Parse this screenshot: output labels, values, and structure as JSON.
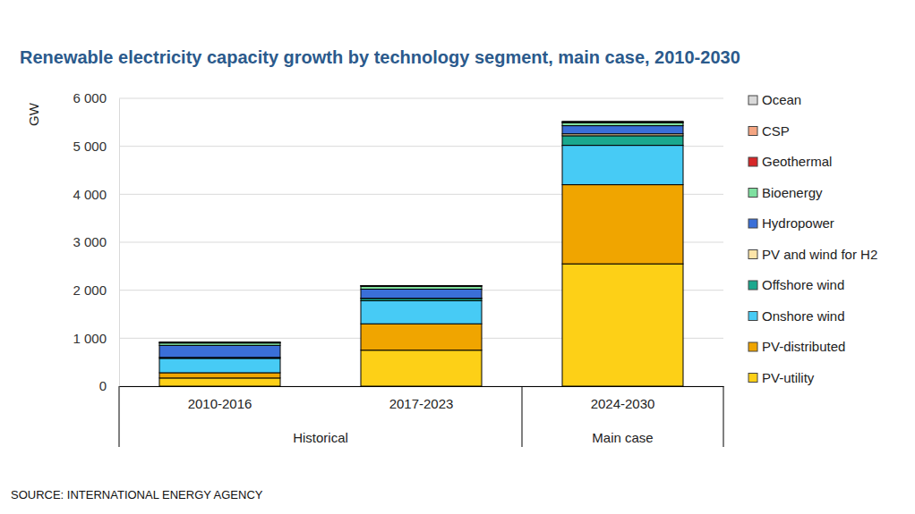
{
  "chart_data": {
    "type": "bar",
    "title": "Renewable electricity capacity growth by technology segment, main case, 2010-2030",
    "y_label": "GW",
    "source": "SOURCE: INTERNATIONAL ENERGY AGENCY",
    "stacked": true,
    "grid": true,
    "legend": "right",
    "categories": [
      "2010-2016",
      "2017-2023",
      "2024-2030"
    ],
    "category_groups": [
      {
        "name": "Historical",
        "categories": [
          "2010-2016",
          "2017-2023"
        ]
      },
      {
        "name": "Main case",
        "categories": [
          "2024-2030"
        ]
      }
    ],
    "series": [
      {
        "name": "PV-utility",
        "color": "#fdd017",
        "values": [
          170,
          750,
          2550
        ]
      },
      {
        "name": "PV-distributed",
        "color": "#f0a500",
        "values": [
          110,
          550,
          1650
        ]
      },
      {
        "name": "Onshore wind",
        "color": "#47cbf5",
        "values": [
          300,
          480,
          820
        ]
      },
      {
        "name": "Offshore wind",
        "color": "#1aa88e",
        "values": [
          20,
          50,
          200
        ]
      },
      {
        "name": "PV and wind for H2",
        "color": "#fce4a8",
        "values": [
          0,
          2,
          40
        ]
      },
      {
        "name": "Hydropower",
        "color": "#3a6fd8",
        "values": [
          250,
          190,
          170
        ]
      },
      {
        "name": "Bioenergy",
        "color": "#7fe0a0",
        "values": [
          50,
          60,
          60
        ]
      },
      {
        "name": "Geothermal",
        "color": "#d62728",
        "values": [
          10,
          10,
          15
        ]
      },
      {
        "name": "CSP",
        "color": "#f4a582",
        "values": [
          5,
          3,
          10
        ]
      },
      {
        "name": "Ocean",
        "color": "#d9d9d9",
        "values": [
          1,
          1,
          2
        ]
      }
    ],
    "ylim": [
      0,
      6000
    ],
    "yticks": [
      0,
      {
        "value": 1000,
        "label": "1 000"
      },
      {
        "value": 2000,
        "label": "2 000"
      },
      {
        "value": 3000,
        "label": "3 000"
      },
      {
        "value": 4000,
        "label": "4 000"
      },
      {
        "value": 5000,
        "label": "5 000"
      },
      {
        "value": 6000,
        "label": "6 000"
      }
    ]
  }
}
